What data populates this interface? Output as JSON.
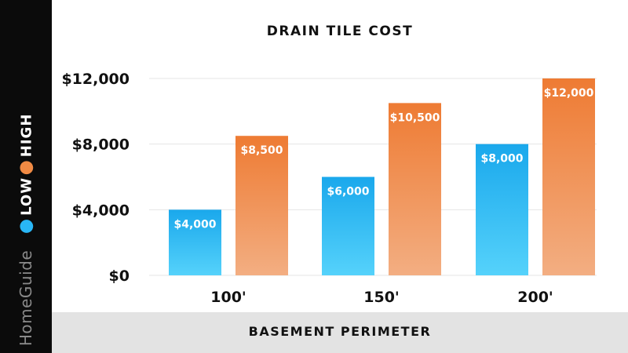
{
  "brand": "HomeGuide",
  "legend": [
    {
      "label": "LOW",
      "color": "#29b6f6"
    },
    {
      "label": "HIGH",
      "color": "#f08a44"
    }
  ],
  "chart_data": {
    "type": "bar",
    "title": "DRAIN TILE COST",
    "xlabel": "BASEMENT PERIMETER",
    "ylabel": "",
    "categories": [
      "100'",
      "150'",
      "200'"
    ],
    "series": [
      {
        "name": "LOW",
        "values": [
          4000,
          6000,
          8000
        ],
        "labels": [
          "$4,000",
          "$6,000",
          "$8,000"
        ],
        "color_top": "#1aa8ec",
        "color_bottom": "#55d2fb"
      },
      {
        "name": "HIGH",
        "values": [
          8500,
          10500,
          12000
        ],
        "labels": [
          "$8,500",
          "$10,500",
          "$12,000"
        ],
        "color_top": "#ee7b33",
        "color_bottom": "#f3ae82"
      }
    ],
    "ylim": [
      0,
      12000
    ],
    "yticks": [
      0,
      4000,
      8000,
      12000
    ],
    "ytick_labels": [
      "$0",
      "$4,000",
      "$8,000",
      "$12,000"
    ],
    "grid": true,
    "legend_position": "left sidebar"
  }
}
